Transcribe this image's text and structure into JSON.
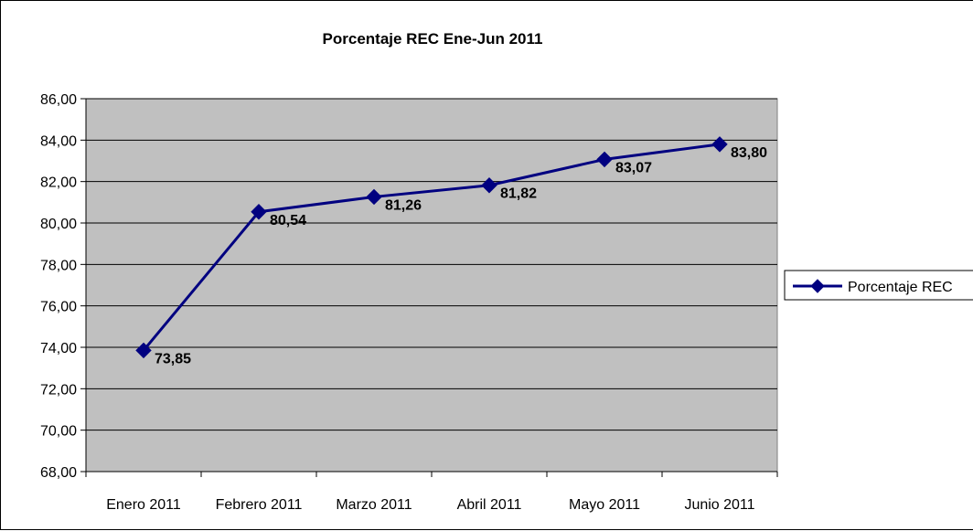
{
  "chart_data": {
    "type": "line",
    "title": "Porcentaje REC Ene-Jun 2011",
    "categories": [
      "Enero 2011",
      "Febrero 2011",
      "Marzo 2011",
      "Abril 2011",
      "Mayo 2011",
      "Junio 2011"
    ],
    "series": [
      {
        "name": "Porcentaje REC",
        "values": [
          73.85,
          80.54,
          81.26,
          81.82,
          83.07,
          83.8
        ],
        "labels": [
          "73,85",
          "80,54",
          "81,26",
          "81,82",
          "83,07",
          "83,80"
        ],
        "color": "#000080",
        "marker": "diamond"
      }
    ],
    "ylim": [
      68,
      86
    ],
    "ytick_step": 2,
    "ytick_labels": [
      "68,00",
      "70,00",
      "72,00",
      "74,00",
      "76,00",
      "78,00",
      "80,00",
      "82,00",
      "84,00",
      "86,00"
    ],
    "grid": "horizontal",
    "plot_background": "#c0c0c0",
    "legend_position": "right"
  }
}
